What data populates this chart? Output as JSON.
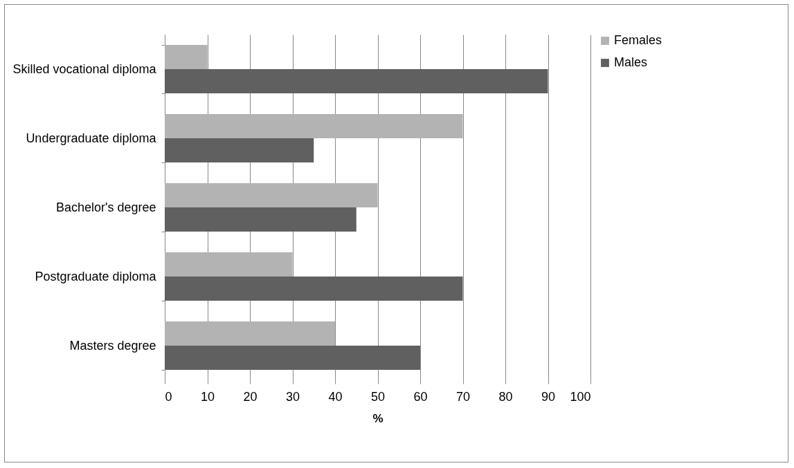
{
  "chart_data": {
    "type": "bar",
    "orientation": "horizontal",
    "xlabel": "%",
    "categories": [
      "Skilled vocational diploma",
      "Undergraduate diploma",
      "Bachelor's degree",
      "Postgraduate diploma",
      "Masters degree"
    ],
    "series": [
      {
        "name": "Females",
        "color": "#b3b3b3",
        "values": [
          10,
          70,
          50,
          30,
          40
        ]
      },
      {
        "name": "Males",
        "color": "#606060",
        "values": [
          90,
          35,
          45,
          70,
          60
        ]
      }
    ],
    "xlim": [
      0,
      100
    ],
    "xticks": [
      0,
      10,
      20,
      30,
      40,
      50,
      60,
      70,
      80,
      90,
      100
    ],
    "grid": "x",
    "legend": "right"
  }
}
